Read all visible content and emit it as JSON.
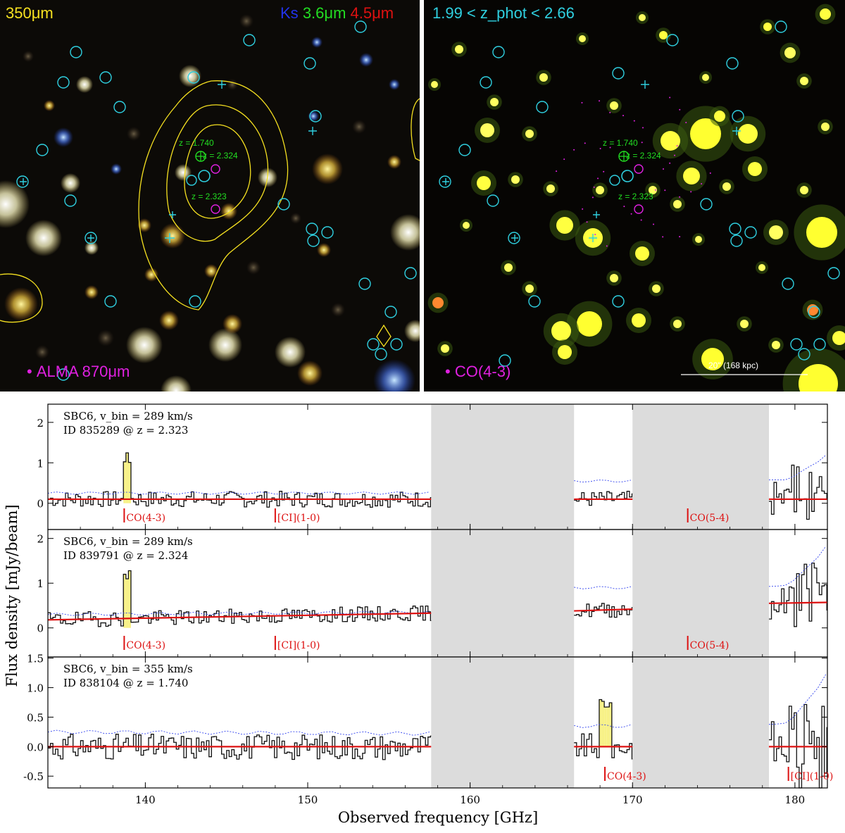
{
  "left_panel": {
    "label_350": "350μm",
    "band_ks": "Ks",
    "band_36": "3.6μm",
    "band_45": "4.5μm",
    "legend": "ALMA 870μm",
    "z_labels": [
      "z = 1.740",
      "z = 2.324",
      "z = 2.323"
    ]
  },
  "right_panel": {
    "zphot": "1.99 < z_phot < 2.66",
    "legend": "CO(4-3)",
    "scalebar": "20\" (168 kpc)",
    "z_labels": [
      "z = 1.740",
      "z = 2.324",
      "z = 2.323"
    ]
  },
  "colors": {
    "yellow": "#f5e020",
    "cyan": "#2fd0e0",
    "green": "#22dd22",
    "magenta": "#e020e0",
    "red": "#dd1111",
    "blue": "#2233ee",
    "gray_band": "#dcdcdc"
  },
  "chart_data": {
    "type": "line",
    "xlabel": "Observed frequency [GHz]",
    "ylabel": "Flux density [mJy/beam]",
    "xlim": [
      134,
      182
    ],
    "xticks": [
      140,
      150,
      160,
      170,
      180
    ],
    "masked_ranges": [
      [
        157.6,
        166.4
      ],
      [
        170.0,
        178.4
      ]
    ],
    "panels": [
      {
        "line1": "SBC6, v_bin = 289 km/s",
        "line2": "ID 835289 @ z = 2.323",
        "ylim": [
          -0.65,
          2.45
        ],
        "yticks": [
          0,
          1,
          2
        ],
        "continuum": [
          [
            134,
            157.6,
            0.1
          ],
          [
            166.4,
            170,
            0.1
          ],
          [
            178.4,
            182,
            0.1
          ]
        ],
        "lines": [
          {
            "label": "CO(4-3)",
            "freq": 138.7
          },
          {
            "label": "[CI](1-0)",
            "freq": 148.0
          },
          {
            "label": "CO(5-4)",
            "freq": 173.4
          }
        ],
        "highlight": [
          138.5,
          139.0
        ],
        "peak": 1.25,
        "seed": 7,
        "rms": 0.2,
        "err": [
          0.25,
          0.25,
          0.55,
          1.25
        ]
      },
      {
        "line1": "SBC6, v_bin = 289 km/s",
        "line2": "ID 839791 @ z = 2.324",
        "ylim": [
          -0.65,
          2.2
        ],
        "yticks": [
          0,
          1,
          2
        ],
        "continuum": [
          [
            134,
            157.6,
            0.18,
            0.33
          ],
          [
            166.4,
            170,
            0.38,
            0.42
          ],
          [
            178.4,
            182,
            0.55,
            0.57
          ]
        ],
        "lines": [
          {
            "label": "CO(4-3)",
            "freq": 138.7
          },
          {
            "label": "[CI](1-0)",
            "freq": 148.0
          },
          {
            "label": "CO(5-4)",
            "freq": 173.4
          }
        ],
        "highlight": [
          138.5,
          139.0
        ],
        "peak": 1.35,
        "seed": 19,
        "rms": 0.17,
        "err": [
          0.3,
          0.35,
          0.9,
          1.9
        ]
      },
      {
        "line1": "SBC6, v_bin = 355 km/s",
        "line2": "ID 838104 @ z = 1.740",
        "ylim": [
          -0.7,
          1.52
        ],
        "yticks": [
          -0.5,
          0.0,
          0.5,
          1.0,
          1.5
        ],
        "continuum": [
          [
            134,
            157.6,
            0.0
          ],
          [
            166.4,
            170,
            0.0
          ],
          [
            178.4,
            182,
            0.0
          ]
        ],
        "lines": [
          {
            "label": "CO(4-3)",
            "freq": 168.3
          },
          {
            "label": "[CI](1-0)",
            "freq": 179.6
          }
        ],
        "highlight": [
          167.9,
          168.6
        ],
        "peak": 0.85,
        "seed": 31,
        "rms": 0.22,
        "err": [
          0.25,
          0.22,
          0.35,
          1.3
        ]
      }
    ]
  }
}
